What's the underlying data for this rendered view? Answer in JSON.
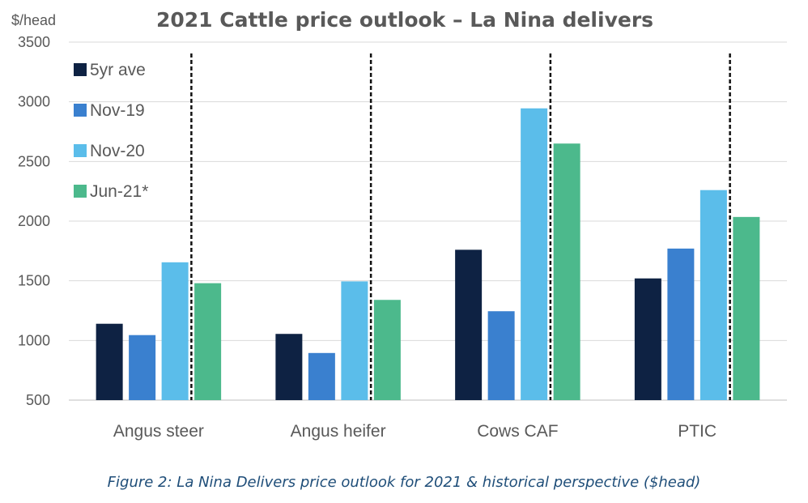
{
  "chart_data": {
    "type": "bar",
    "title": "2021 Cattle price outlook – La Nina delivers",
    "ylabel": "$/head",
    "xlabel": "",
    "ylim": [
      500,
      3500
    ],
    "yticks": [
      500,
      1000,
      1500,
      2000,
      2500,
      3000,
      3500
    ],
    "grid": true,
    "legend_position": "top-left",
    "categories": [
      "Angus steer",
      "Angus heifer",
      "Cows CAF",
      "PTIC"
    ],
    "series": [
      {
        "name": "5yr ave",
        "color": "#0e2243",
        "values": [
          1140,
          1055,
          1760,
          1520
        ]
      },
      {
        "name": "Nov-19",
        "color": "#3a80cf",
        "values": [
          1045,
          895,
          1245,
          1770
        ]
      },
      {
        "name": "Nov-20",
        "color": "#5bbdea",
        "values": [
          1655,
          1495,
          2945,
          2260
        ]
      },
      {
        "name": "Jun-21*",
        "color": "#4cb98c",
        "values": [
          1480,
          1340,
          2650,
          2035
        ]
      }
    ],
    "annotations": "dashed vertical line between Nov-20 and Jun-21* bars in each group"
  },
  "caption": "Figure 2: La Nina Delivers price outlook for 2021 & historical perspective ($head)"
}
